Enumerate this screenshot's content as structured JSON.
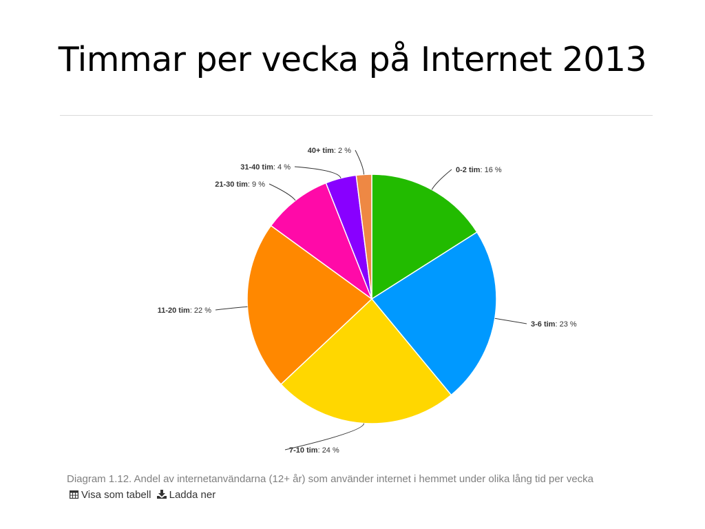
{
  "slide": {
    "title": "Timmar per vecka på Internet 2013"
  },
  "chart_data": {
    "type": "pie",
    "title": "",
    "unit": "%",
    "slices": [
      {
        "name": "0-2 tim",
        "value": 16,
        "label": "16 %",
        "color": "#22bb00"
      },
      {
        "name": "3-6 tim",
        "value": 23,
        "label": "23 %",
        "color": "#0099ff"
      },
      {
        "name": "7-10 tim",
        "value": 24,
        "label": "24 %",
        "color": "#ffd700"
      },
      {
        "name": "11-20 tim",
        "value": 22,
        "label": "22 %",
        "color": "#ff8800"
      },
      {
        "name": "21-30 tim",
        "value": 9,
        "label": "9 %",
        "color": "#ff0aa8"
      },
      {
        "name": "31-40 tim",
        "value": 4,
        "label": "4 %",
        "color": "#8800ff"
      },
      {
        "name": "40+ tim",
        "value": 2,
        "label": "2 %",
        "color": "#ee8844"
      }
    ],
    "start": "top",
    "direction": "clockwise"
  },
  "caption": {
    "text": "Diagram 1.12. Andel av internetanvändarna (12+ år) som använder internet i hemmet under olika lång tid per vecka",
    "table_link": "Visa som tabell",
    "download_link": "Ladda ner",
    "table_icon": "table-icon",
    "download_icon": "download-icon"
  }
}
